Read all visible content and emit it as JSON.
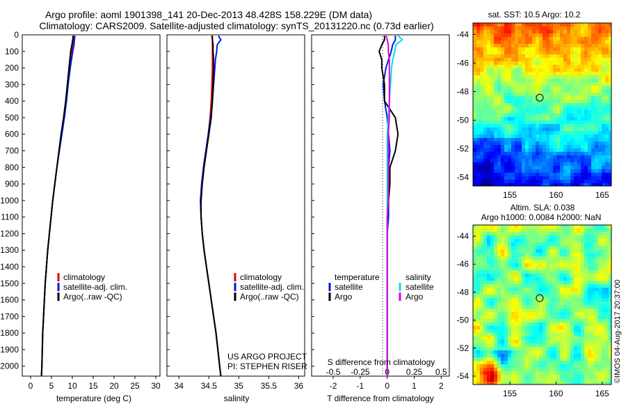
{
  "title": {
    "line1": "Argo profile: aoml 1901398_141 20-Dec-2013 48.428S 158.229E (DM data)",
    "line2": "Climatology: CARS2009. Satellite-adjusted climatology: synTS_20131220.nc (0.73d earlier)"
  },
  "colors": {
    "climatology": "#e00000",
    "satellite": "#0018e0",
    "argo": "#000000",
    "sal_satellite": "#00e0e0",
    "sal_argo": "#e000e0"
  },
  "legend": {
    "climatology": "climatology",
    "satellite": "satellite-adj. clim.",
    "argo": "Argo(..raw -QC)",
    "temperature": "temperature",
    "salinity": "salinity",
    "sat": "satellite",
    "argo_short": "Argo"
  },
  "credit": {
    "project": "US ARGO PROJECT",
    "pi": "PI: STEPHEN RISER"
  },
  "stamp": "©IMOS 04-Aug-2017 20:37:00",
  "chart_data": [
    {
      "type": "line",
      "xlabel": "temperature (deg C)",
      "ylabel": "",
      "xlim": [
        -2,
        31
      ],
      "ylim": [
        2060,
        0
      ],
      "xticks": [
        "0",
        "5",
        "10",
        "15",
        "20",
        "25",
        "30"
      ],
      "yticks": [
        "0",
        "100",
        "200",
        "300",
        "400",
        "500",
        "600",
        "700",
        "800",
        "900",
        "1000",
        "1100",
        "1200",
        "1300",
        "1400",
        "1500",
        "1600",
        "1700",
        "1800",
        "1900",
        "2000"
      ],
      "series": [
        {
          "name": "climatology",
          "depth": [
            5,
            30,
            60,
            100,
            150,
            200,
            300,
            400,
            500,
            600,
            700,
            800,
            900,
            1000,
            1100,
            1200,
            1300,
            1400,
            1500,
            1600,
            1700,
            1800,
            1900,
            2000,
            2060
          ],
          "values": [
            10.3,
            10.2,
            10.1,
            9.9,
            9.6,
            9.4,
            8.9,
            8.5,
            8.0,
            7.4,
            6.8,
            6.3,
            5.8,
            5.3,
            4.9,
            4.5,
            4.1,
            3.8,
            3.5,
            3.3,
            3.1,
            2.9,
            2.8,
            2.7,
            2.6
          ]
        },
        {
          "name": "satellite-adj. clim.",
          "depth": [
            5,
            30,
            60,
            100,
            150,
            200,
            300,
            400,
            500,
            600,
            700,
            800,
            900,
            1000,
            1100,
            1200,
            1300,
            1400,
            1500,
            1600,
            1700,
            1800,
            1900,
            2000,
            2060
          ],
          "values": [
            10.6,
            10.5,
            10.4,
            10.1,
            9.8,
            9.5,
            9.0,
            8.6,
            8.1,
            7.5,
            6.9,
            6.3,
            5.8,
            5.3,
            4.9,
            4.5,
            4.1,
            3.8,
            3.5,
            3.3,
            3.1,
            2.9,
            2.8,
            2.7,
            2.6
          ]
        },
        {
          "name": "Argo(..raw -QC)",
          "depth": [
            5,
            30,
            60,
            100,
            150,
            200,
            300,
            400,
            500,
            600,
            700,
            800,
            900,
            1000,
            1100,
            1200,
            1300,
            1400,
            1500,
            1600,
            1700,
            1800,
            1900,
            2000,
            2060
          ],
          "values": [
            10.2,
            10.1,
            9.9,
            9.6,
            9.4,
            9.2,
            8.8,
            8.4,
            7.9,
            7.3,
            6.8,
            6.3,
            5.8,
            5.3,
            4.9,
            4.5,
            4.1,
            3.8,
            3.5,
            3.3,
            3.1,
            2.9,
            2.8,
            2.7,
            2.6
          ]
        }
      ]
    },
    {
      "type": "line",
      "xlabel": "salinity",
      "ylabel": "",
      "xlim": [
        33.8,
        36.1
      ],
      "ylim": [
        2060,
        0
      ],
      "xticks": [
        "34",
        "34.5",
        "35",
        "35.5",
        "36"
      ],
      "series": [
        {
          "name": "climatology",
          "depth": [
            5,
            30,
            60,
            100,
            150,
            200,
            300,
            400,
            500,
            600,
            700,
            800,
            900,
            1000,
            1100,
            1200,
            1300,
            1400,
            1500,
            1600,
            1700,
            1800,
            1900,
            2000,
            2060
          ],
          "values": [
            34.56,
            34.56,
            34.56,
            34.56,
            34.56,
            34.56,
            34.55,
            34.54,
            34.52,
            34.49,
            34.45,
            34.41,
            34.38,
            34.36,
            34.37,
            34.39,
            34.42,
            34.46,
            34.5,
            34.54,
            34.58,
            34.62,
            34.65,
            34.68,
            34.7
          ]
        },
        {
          "name": "satellite-adj. clim.",
          "depth": [
            5,
            30,
            60,
            100,
            150,
            200,
            300,
            400,
            500,
            600,
            700,
            800,
            900,
            1000,
            1100,
            1200,
            1300,
            1400,
            1500,
            1600,
            1700,
            1800,
            1900,
            2000,
            2060
          ],
          "values": [
            34.66,
            34.7,
            34.64,
            34.63,
            34.61,
            34.6,
            34.58,
            34.56,
            34.53,
            34.49,
            34.45,
            34.41,
            34.38,
            34.36,
            34.37,
            34.39,
            34.42,
            34.46,
            34.5,
            34.54,
            34.58,
            34.62,
            34.65,
            34.68,
            34.7
          ]
        },
        {
          "name": "Argo(..raw -QC)",
          "depth": [
            5,
            30,
            60,
            100,
            150,
            200,
            300,
            400,
            500,
            600,
            700,
            800,
            900,
            1000,
            1100,
            1200,
            1300,
            1400,
            1500,
            1600,
            1700,
            1800,
            1900,
            2000,
            2060
          ],
          "values": [
            34.55,
            34.56,
            34.57,
            34.57,
            34.58,
            34.58,
            34.57,
            34.56,
            34.54,
            34.5,
            34.46,
            34.42,
            34.39,
            34.37,
            34.37,
            34.39,
            34.42,
            34.46,
            34.5,
            34.54,
            34.58,
            34.62,
            34.65,
            34.68,
            34.7
          ]
        }
      ]
    },
    {
      "type": "line",
      "xlabel": "T difference from climatology",
      "xlabel2": "S difference from climatology",
      "xlim": [
        -2.8,
        2.3
      ],
      "xlim2": [
        -0.7,
        0.575
      ],
      "ylim": [
        2060,
        0
      ],
      "xticks": [
        "-2",
        "-1",
        "0",
        "1",
        "2"
      ],
      "xticks2": [
        "-0.5",
        "-0.25",
        "0",
        "0.25",
        "0.5"
      ],
      "series": [
        {
          "name": "temperature satellite",
          "depth": [
            5,
            30,
            60,
            100,
            150,
            200,
            300,
            400,
            500,
            600,
            700,
            800,
            900,
            1000,
            1100,
            1200,
            1300,
            1400,
            1500,
            1600,
            1700,
            1800,
            1900,
            2000,
            2060
          ],
          "values": [
            0.3,
            0.3,
            0.2,
            0.15,
            0.05,
            -0.05,
            -0.15,
            -0.1,
            0.0,
            0.05,
            0.1,
            0.05,
            0.05,
            0.05,
            0.05,
            0.0,
            0.0,
            0.0,
            0.0,
            0.0,
            0.0,
            0.0,
            0.0,
            0.0,
            0.0
          ]
        },
        {
          "name": "temperature Argo",
          "depth": [
            5,
            30,
            60,
            100,
            150,
            200,
            300,
            400,
            500,
            600,
            700,
            800,
            900,
            1000,
            1100,
            1200,
            1300,
            1400,
            1500,
            1600,
            1700,
            1800,
            1900,
            2000,
            2060
          ],
          "values": [
            -0.1,
            -0.1,
            -0.2,
            -0.3,
            -0.2,
            -0.2,
            -0.1,
            -0.1,
            0.3,
            0.4,
            0.3,
            0.1,
            0.1,
            0.05,
            0.0,
            0.0,
            0.0,
            0.0,
            0.0,
            0.0,
            0.0,
            0.0,
            0.0,
            0.0,
            0.0
          ]
        },
        {
          "name": "salinity satellite",
          "depth": [
            5,
            30,
            60,
            100,
            150,
            200,
            300,
            400,
            500,
            600,
            700,
            800,
            900,
            1000,
            1100,
            1200,
            1300,
            1400,
            1500,
            1600,
            1700,
            1800,
            1900,
            2000,
            2060
          ],
          "values": [
            0.1,
            0.14,
            0.08,
            0.07,
            0.05,
            0.04,
            0.03,
            0.02,
            0.01,
            0.0,
            0.0,
            0.0,
            0.0,
            0.0,
            0.0,
            0.0,
            0.0,
            0.0,
            0.0,
            0.0,
            0.0,
            0.0,
            0.0,
            0.0,
            0.0
          ]
        },
        {
          "name": "salinity Argo",
          "depth": [
            5,
            30,
            60,
            100,
            150,
            200,
            300,
            400,
            500,
            600,
            700,
            800,
            900,
            1000,
            1100,
            1200,
            1300,
            1400,
            1500,
            1600,
            1700,
            1800,
            1900,
            2000,
            2060
          ],
          "values": [
            -0.01,
            0.0,
            0.01,
            0.01,
            0.02,
            0.02,
            0.02,
            0.02,
            0.02,
            0.01,
            0.01,
            0.01,
            0.01,
            0.01,
            0.0,
            0.0,
            0.0,
            0.0,
            0.0,
            0.0,
            0.0,
            0.0,
            0.0,
            0.0,
            0.0
          ]
        }
      ]
    },
    {
      "type": "heatmap",
      "title": "sat. SST: 10.5 Argo: 10.2",
      "xlim": [
        151,
        166
      ],
      "ylim": [
        -54.6,
        -43.2
      ],
      "xticks": [
        "155",
        "160",
        "165"
      ],
      "yticks": [
        "-44",
        "-46",
        "-48",
        "-50",
        "-52",
        "-54"
      ],
      "marker": {
        "lon": 158.229,
        "lat": -48.428
      },
      "bands": [
        {
          "lat": -43.2,
          "value": "warm"
        },
        {
          "lat": -54.6,
          "value": "cold"
        }
      ]
    },
    {
      "type": "heatmap",
      "title": "Altim. SLA: 0.038",
      "subtitle": "Argo h1000: 0.0084 h2000: NaN",
      "xlim": [
        151,
        166
      ],
      "ylim": [
        -54.6,
        -43.2
      ],
      "xticks": [
        "155",
        "160",
        "165"
      ],
      "yticks": [
        "-44",
        "-46",
        "-48",
        "-50",
        "-52",
        "-54"
      ],
      "marker": {
        "lon": 158.229,
        "lat": -48.428
      }
    }
  ]
}
